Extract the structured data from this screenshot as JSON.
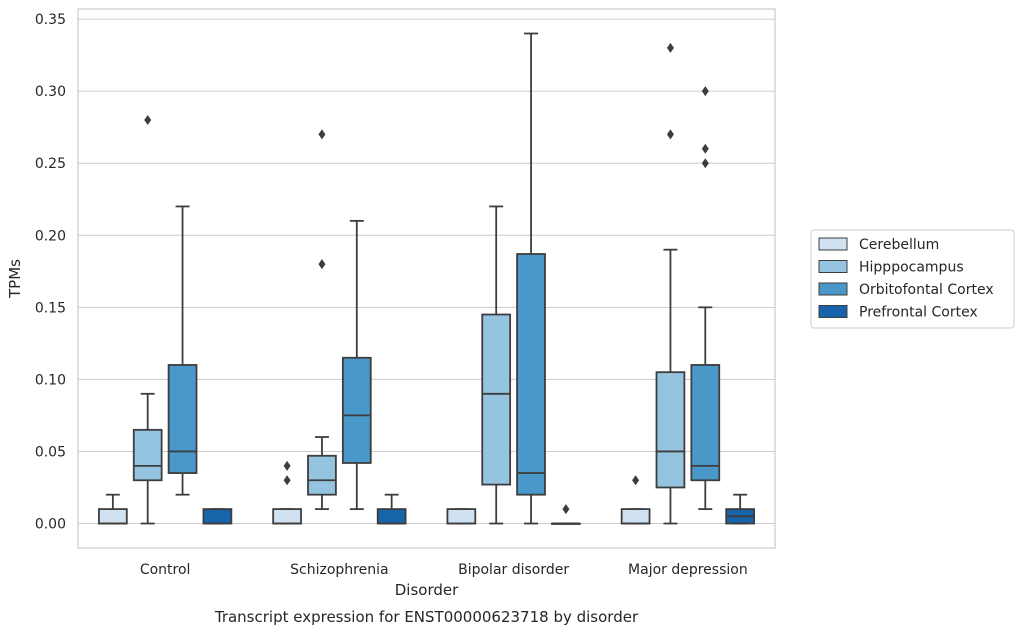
{
  "chart_data": {
    "type": "box",
    "title": "",
    "caption": "Transcript expression for ENST00000623718 by disorder",
    "xlabel": "Disorder",
    "ylabel": "TPMs",
    "ylim": [
      -0.017,
      0.357
    ],
    "yticks": [
      "0.00",
      "0.05",
      "0.10",
      "0.15",
      "0.20",
      "0.25",
      "0.30",
      "0.35"
    ],
    "grid": true,
    "legend_position": "right",
    "categories": [
      "Control",
      "Schizophrenia",
      "Bipolar disorder",
      "Major depression"
    ],
    "series": [
      {
        "name": "Cerebellum",
        "color": "#d0e1f2",
        "boxes": [
          {
            "category": "Control",
            "q1": 0.0,
            "median": 0.0,
            "q3": 0.01,
            "whisker_low": 0.0,
            "whisker_high": 0.02,
            "outliers": []
          },
          {
            "category": "Schizophrenia",
            "q1": 0.0,
            "median": 0.0,
            "q3": 0.01,
            "whisker_low": 0.0,
            "whisker_high": 0.01,
            "outliers": [
              0.03,
              0.04
            ]
          },
          {
            "category": "Bipolar disorder",
            "q1": 0.0,
            "median": 0.0,
            "q3": 0.01,
            "whisker_low": 0.0,
            "whisker_high": 0.01,
            "outliers": []
          },
          {
            "category": "Major depression",
            "q1": 0.0,
            "median": 0.0,
            "q3": 0.01,
            "whisker_low": 0.0,
            "whisker_high": 0.01,
            "outliers": [
              0.03
            ]
          }
        ]
      },
      {
        "name": "Hipppocampus",
        "color": "#94c4df",
        "boxes": [
          {
            "category": "Control",
            "q1": 0.03,
            "median": 0.04,
            "q3": 0.065,
            "whisker_low": 0.0,
            "whisker_high": 0.09,
            "outliers": [
              0.28
            ]
          },
          {
            "category": "Schizophrenia",
            "q1": 0.02,
            "median": 0.03,
            "q3": 0.047,
            "whisker_low": 0.01,
            "whisker_high": 0.06,
            "outliers": [
              0.18,
              0.27
            ]
          },
          {
            "category": "Bipolar disorder",
            "q1": 0.027,
            "median": 0.09,
            "q3": 0.145,
            "whisker_low": 0.0,
            "whisker_high": 0.22,
            "outliers": []
          },
          {
            "category": "Major depression",
            "q1": 0.025,
            "median": 0.05,
            "q3": 0.105,
            "whisker_low": 0.0,
            "whisker_high": 0.19,
            "outliers": [
              0.27,
              0.33
            ]
          }
        ]
      },
      {
        "name": "Orbitofontal Cortex",
        "color": "#4a98c9",
        "boxes": [
          {
            "category": "Control",
            "q1": 0.035,
            "median": 0.05,
            "q3": 0.11,
            "whisker_low": 0.02,
            "whisker_high": 0.22,
            "outliers": []
          },
          {
            "category": "Schizophrenia",
            "q1": 0.042,
            "median": 0.075,
            "q3": 0.115,
            "whisker_low": 0.01,
            "whisker_high": 0.21,
            "outliers": []
          },
          {
            "category": "Bipolar disorder",
            "q1": 0.02,
            "median": 0.035,
            "q3": 0.187,
            "whisker_low": 0.0,
            "whisker_high": 0.34,
            "outliers": []
          },
          {
            "category": "Major depression",
            "q1": 0.03,
            "median": 0.04,
            "q3": 0.11,
            "whisker_low": 0.01,
            "whisker_high": 0.15,
            "outliers": [
              0.25,
              0.26,
              0.3
            ]
          }
        ]
      },
      {
        "name": "Prefrontal Cortex",
        "color": "#1764ab",
        "boxes": [
          {
            "category": "Control",
            "q1": 0.0,
            "median": 0.0,
            "q3": 0.01,
            "whisker_low": 0.0,
            "whisker_high": 0.01,
            "outliers": []
          },
          {
            "category": "Schizophrenia",
            "q1": 0.0,
            "median": 0.0,
            "q3": 0.01,
            "whisker_low": 0.0,
            "whisker_high": 0.02,
            "outliers": []
          },
          {
            "category": "Bipolar disorder",
            "q1": 0.0,
            "median": 0.0,
            "q3": 0.0,
            "whisker_low": 0.0,
            "whisker_high": 0.0,
            "outliers": [
              0.01
            ]
          },
          {
            "category": "Major depression",
            "q1": 0.0,
            "median": 0.005,
            "q3": 0.01,
            "whisker_low": 0.0,
            "whisker_high": 0.02,
            "outliers": []
          }
        ]
      }
    ]
  }
}
